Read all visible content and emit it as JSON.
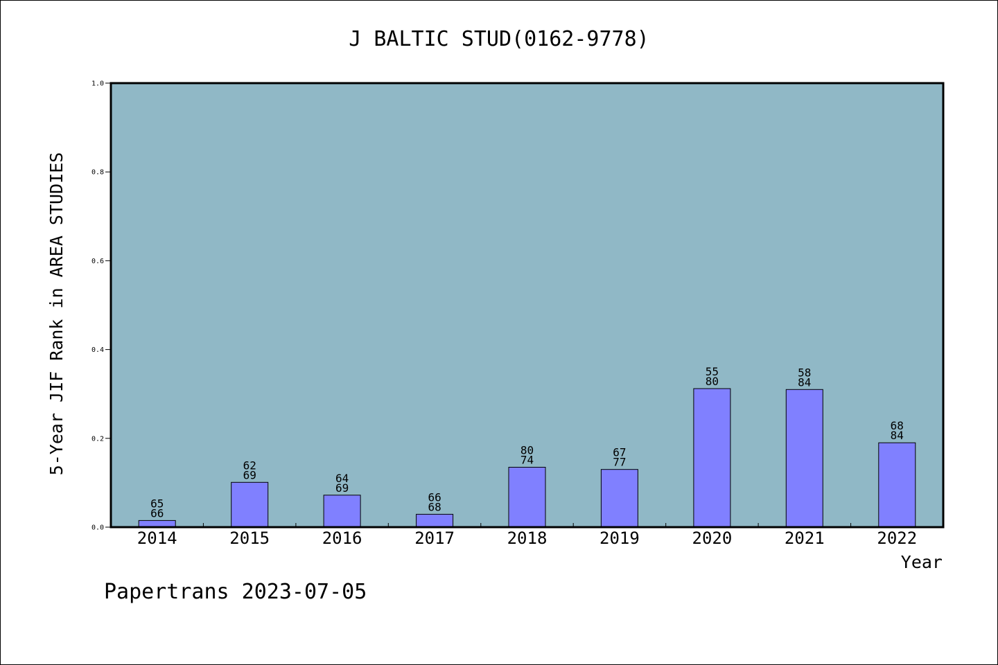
{
  "chart_data": {
    "type": "bar",
    "title": "J BALTIC STUD(0162-9778)",
    "ylabel": "5-Year JIF Rank in AREA STUDIES",
    "xlabel": "Year",
    "categories": [
      "2014",
      "2015",
      "2016",
      "2017",
      "2018",
      "2019",
      "2020",
      "2021",
      "2022"
    ],
    "values": [
      0.015,
      0.101,
      0.072,
      0.029,
      0.135,
      0.13,
      0.312,
      0.31,
      0.19
    ],
    "bar_labels": [
      [
        "65",
        "66"
      ],
      [
        "62",
        "69"
      ],
      [
        "64",
        "69"
      ],
      [
        "66",
        "68"
      ],
      [
        "80",
        "74"
      ],
      [
        "67",
        "77"
      ],
      [
        "55",
        "80"
      ],
      [
        "58",
        "84"
      ],
      [
        "68",
        "84"
      ]
    ],
    "ylim": [
      0,
      1.0
    ],
    "yticks": [
      "0.0",
      "0.2",
      "0.4",
      "0.6",
      "0.8",
      "1.0"
    ],
    "grid": false,
    "colors": {
      "plot_background": "#90b8c6",
      "bar_fill": "#8080ff",
      "bar_edge": "#000000"
    }
  },
  "footer": "Papertrans 2023-07-05"
}
